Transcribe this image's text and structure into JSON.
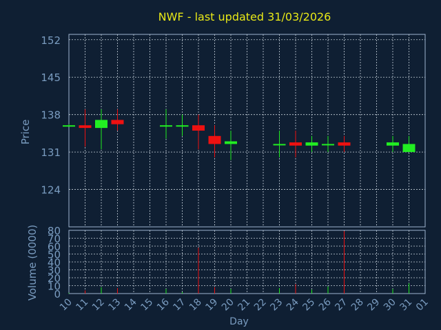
{
  "chart_data": {
    "type": "candlestick",
    "title": "NWF - last updated 31/03/2026",
    "xlabel": "Day",
    "price_panel": {
      "ylabel": "Price",
      "yticks": [
        124,
        131,
        138,
        145,
        152
      ],
      "ylim": [
        117,
        153
      ],
      "grid": true
    },
    "volume_panel": {
      "ylabel": "Volume (0000)",
      "yticks": [
        0,
        10,
        20,
        30,
        40,
        50,
        60,
        70,
        80
      ],
      "ylim": [
        0,
        80
      ],
      "grid": true
    },
    "x_tick_labels": [
      "10",
      "11",
      "12",
      "13",
      "14",
      "15",
      "16",
      "17",
      "18",
      "19",
      "20",
      "21",
      "22",
      "23",
      "24",
      "25",
      "26",
      "27",
      "28",
      "29",
      "30",
      "31",
      "01"
    ],
    "candles": [
      {
        "day": "10",
        "open": 136.0,
        "high": 136.2,
        "low": 135.8,
        "close": 136.0,
        "volume": 1,
        "up": true
      },
      {
        "day": "11",
        "open": 136.0,
        "high": 139.0,
        "low": 132.0,
        "close": 135.5,
        "volume": 4,
        "up": false
      },
      {
        "day": "12",
        "open": 135.5,
        "high": 139.0,
        "low": 131.5,
        "close": 137.0,
        "volume": 8,
        "up": true
      },
      {
        "day": "13",
        "open": 137.0,
        "high": 139.0,
        "low": 135.0,
        "close": 136.2,
        "volume": 7,
        "up": false
      },
      {
        "day": "16",
        "open": 136.0,
        "high": 139.0,
        "low": 133.5,
        "close": 136.0,
        "volume": 6,
        "up": true
      },
      {
        "day": "17",
        "open": 136.0,
        "high": 138.0,
        "low": 134.0,
        "close": 136.0,
        "volume": 2,
        "up": true
      },
      {
        "day": "18",
        "open": 136.0,
        "high": 138.0,
        "low": 131.5,
        "close": 135.0,
        "volume": 58,
        "up": false
      },
      {
        "day": "19",
        "open": 134.0,
        "high": 136.0,
        "low": 130.0,
        "close": 132.5,
        "volume": 8,
        "up": false
      },
      {
        "day": "20",
        "open": 132.5,
        "high": 135.0,
        "low": 129.5,
        "close": 133.0,
        "volume": 6,
        "up": true
      },
      {
        "day": "23",
        "open": 132.5,
        "high": 135.0,
        "low": 130.0,
        "close": 132.5,
        "volume": 7,
        "up": true
      },
      {
        "day": "24",
        "open": 132.8,
        "high": 135.0,
        "low": 130.0,
        "close": 132.2,
        "volume": 12,
        "up": false
      },
      {
        "day": "25",
        "open": 132.2,
        "high": 134.0,
        "low": 131.0,
        "close": 132.8,
        "volume": 5,
        "up": true
      },
      {
        "day": "26",
        "open": 132.5,
        "high": 134.0,
        "low": 131.0,
        "close": 132.5,
        "volume": 9,
        "up": true
      },
      {
        "day": "27",
        "open": 132.8,
        "high": 134.0,
        "low": 131.0,
        "close": 132.2,
        "volume": 79,
        "up": false
      },
      {
        "day": "30",
        "open": 132.2,
        "high": 134.0,
        "low": 131.0,
        "close": 132.8,
        "volume": 6,
        "up": true
      },
      {
        "day": "31",
        "open": 131.0,
        "high": 134.0,
        "low": 131.0,
        "close": 132.5,
        "volume": 13,
        "up": true
      }
    ]
  },
  "colors": {
    "background": "#0f1f33",
    "title": "#e8e817",
    "axis_text": "#7a9cc0",
    "frame": "#9fb6d0",
    "grid": "#c8d2dc",
    "up": "#22ee22",
    "down": "#ee1111"
  }
}
